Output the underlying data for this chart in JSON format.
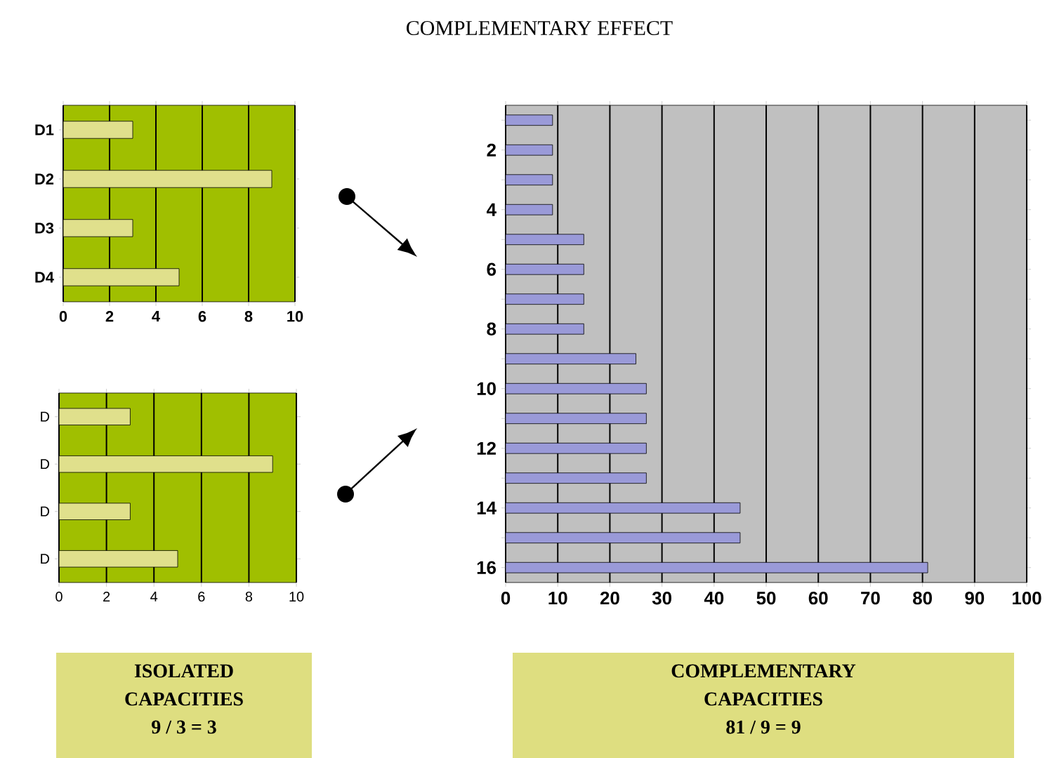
{
  "chart_data": [
    {
      "type": "bar",
      "orientation": "horizontal",
      "categories": [
        "D1",
        "D2",
        "D3",
        "D4"
      ],
      "values": [
        3,
        9,
        3,
        5
      ],
      "color": "#e0e08c",
      "xlim": [
        0,
        10
      ],
      "xticks": [
        0,
        2,
        4,
        6,
        8,
        10
      ],
      "grid": "x"
    },
    {
      "type": "bar",
      "orientation": "horizontal",
      "categories": [
        "D",
        "D",
        "D",
        "D"
      ],
      "values": [
        3,
        9,
        3,
        5
      ],
      "color": "#e0e08c",
      "xlim": [
        0,
        10
      ],
      "xticks": [
        0,
        2,
        4,
        6,
        8,
        10
      ],
      "grid": "x",
      "annotations": [
        "ISOLATED",
        "CAPACITIES",
        "9 / 3 = 3"
      ]
    },
    {
      "type": "bar",
      "orientation": "horizontal",
      "title": "COMPLEMENTARY EFFECT",
      "categories": [
        null,
        "2",
        null,
        "4",
        null,
        "6",
        null,
        "8",
        null,
        "10",
        null,
        "12",
        null,
        "14",
        null,
        "16"
      ],
      "values": [
        9,
        9,
        9,
        9,
        15,
        15,
        15,
        15,
        25,
        27,
        27,
        27,
        27,
        45,
        45,
        81
      ],
      "color": "#9a9ad8",
      "xlim": [
        0,
        100
      ],
      "xticks": [
        0,
        10,
        20,
        30,
        40,
        50,
        60,
        70,
        80,
        90,
        100
      ],
      "grid": "x",
      "annotations": [
        "COMPLEMENTARY",
        "CAPACITIES",
        "81 / 9 = 9"
      ]
    }
  ]
}
